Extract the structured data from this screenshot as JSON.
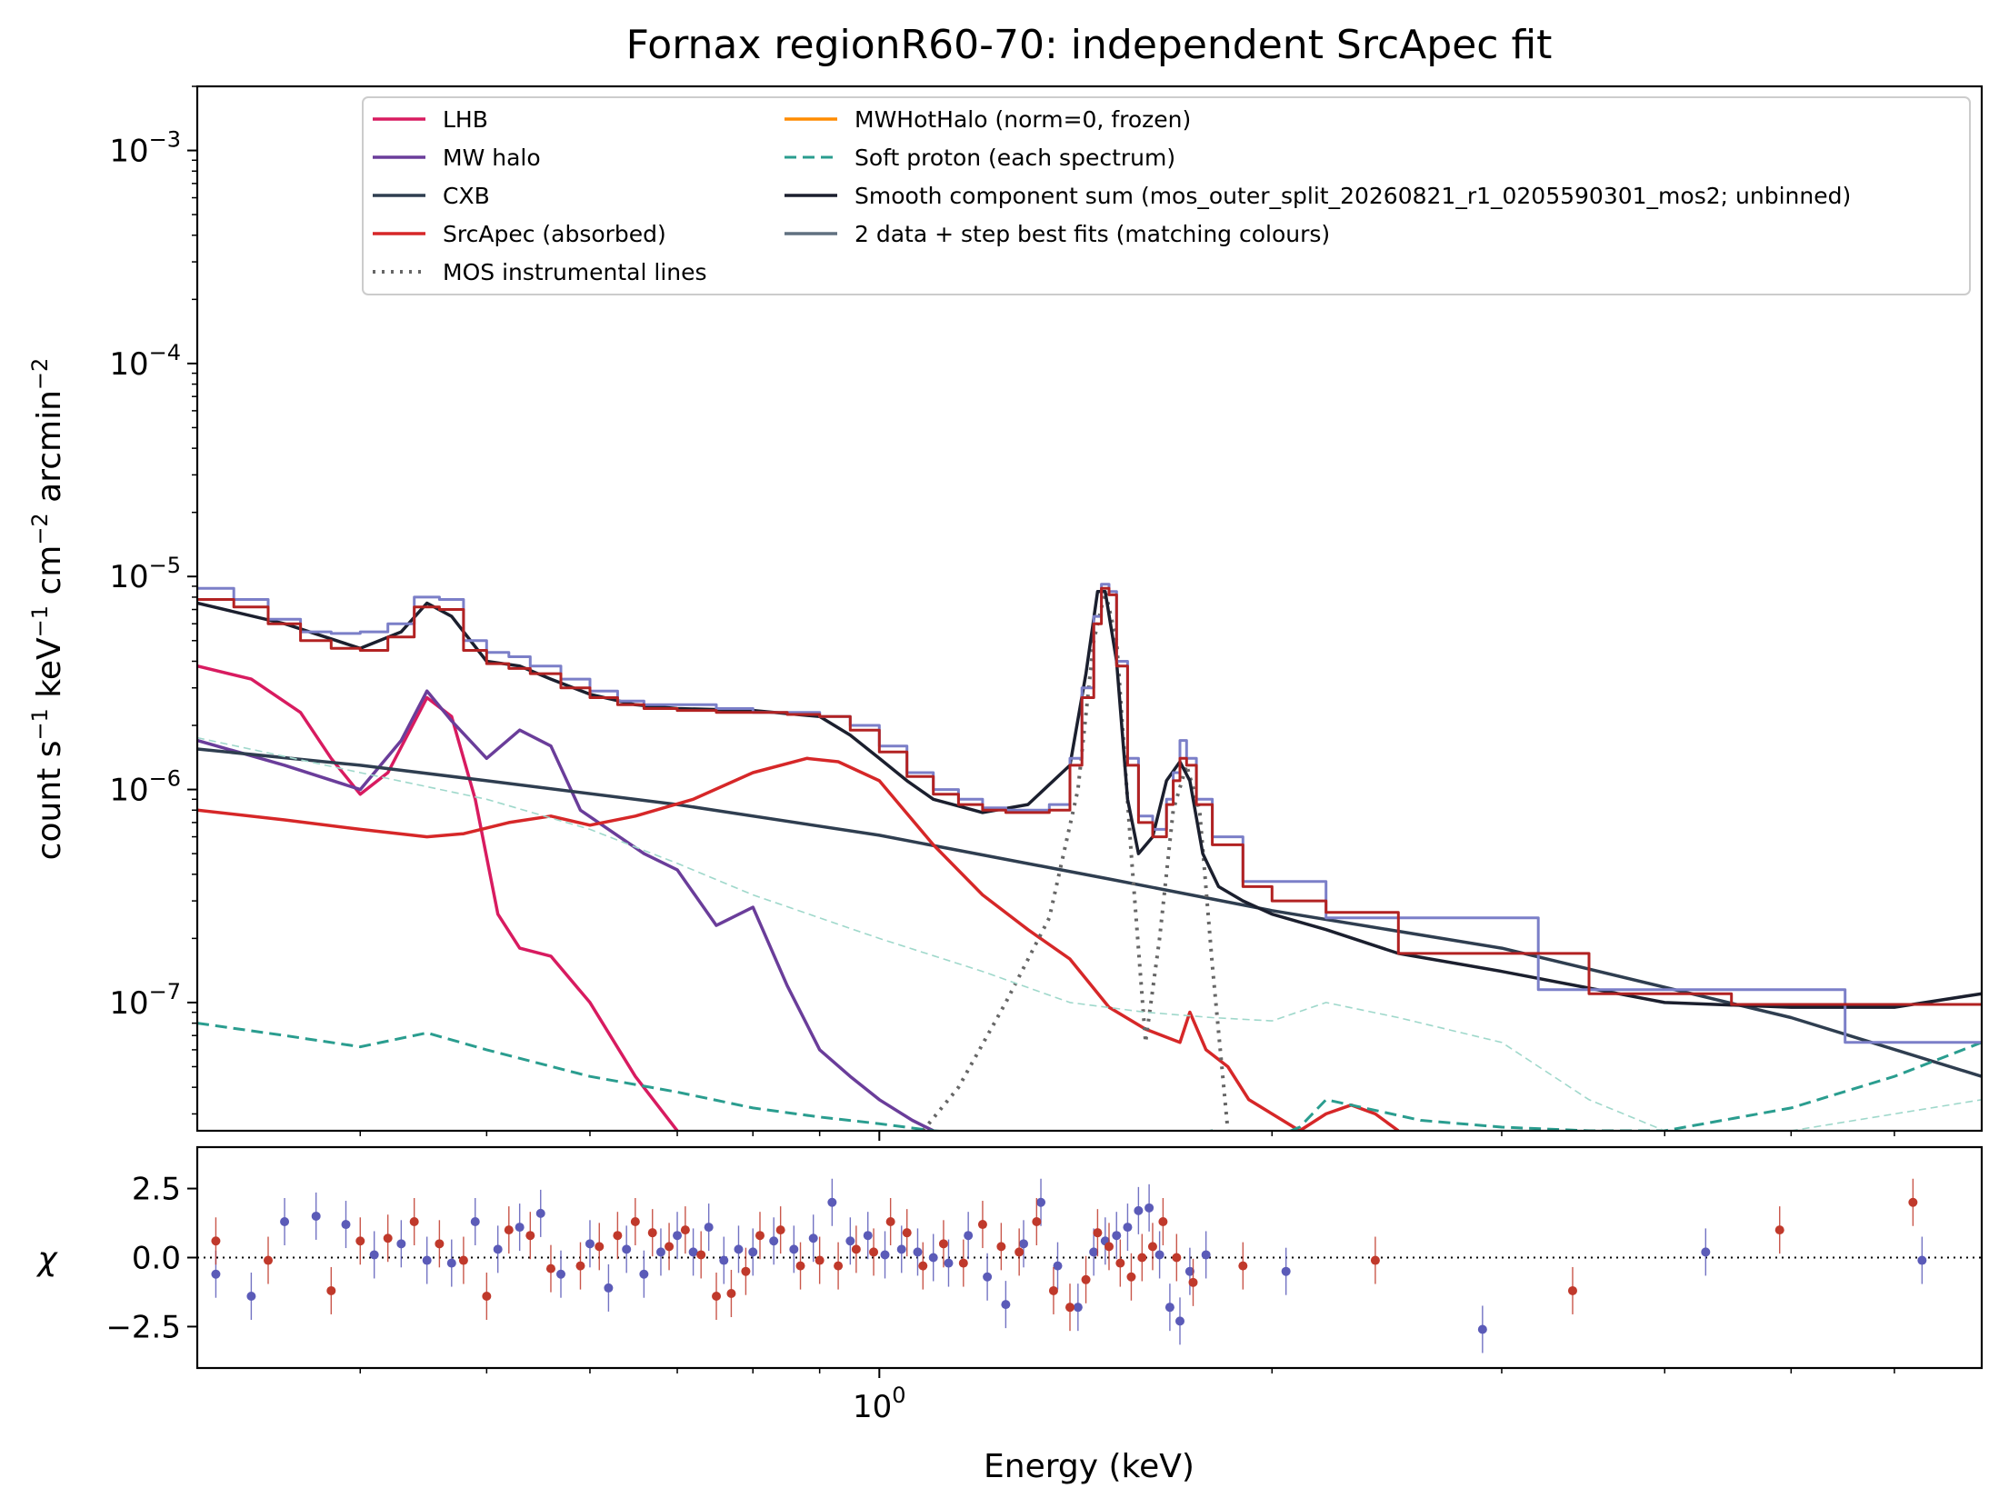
{
  "chart_data": {
    "type": "line",
    "title": "Fornax regionR60-70: independent SrcApec fit",
    "xlabel": "Energy (keV)",
    "x_scale": "log",
    "xlim": [
      0.3,
      7.0
    ],
    "x_tick_labels": [
      {
        "value": 1.0,
        "label": "10^0"
      }
    ],
    "x_minor_ticks": [
      0.4,
      0.5,
      0.6,
      0.7,
      0.8,
      0.9,
      2,
      3,
      4,
      5,
      6
    ],
    "grid": false,
    "legend_placement": "top",
    "main_panel": {
      "ylabel": "count s^-1 keV^-1 cm^-2 arcmin^-2",
      "y_scale": "log",
      "ylim": [
        2.5e-08,
        0.002
      ],
      "y_tick_labels": [
        {
          "value": 0.001,
          "label": "10^-3"
        },
        {
          "value": 0.0001,
          "label": "10^-4"
        },
        {
          "value": 1e-05,
          "label": "10^-5"
        },
        {
          "value": 1e-06,
          "label": "10^-6"
        },
        {
          "value": 1e-07,
          "label": "10^-7"
        }
      ],
      "legend": [
        {
          "label": "LHB",
          "color": "#d81b60",
          "style": "solid"
        },
        {
          "label": "MW halo",
          "color": "#6a3d9a",
          "style": "solid"
        },
        {
          "label": "CXB",
          "color": "#2f3e50",
          "style": "solid"
        },
        {
          "label": "SrcApec (absorbed)",
          "color": "#d62728",
          "style": "solid"
        },
        {
          "label": "MOS instrumental lines",
          "color": "#666666",
          "style": "dotted"
        },
        {
          "label": "MWHotHalo (norm=0, frozen)",
          "color": "#ff8c00",
          "style": "solid"
        },
        {
          "label": "Soft proton (each spectrum)",
          "color": "#2a9d8f",
          "style": "dashed"
        },
        {
          "label": "Smooth component sum (mos_outer_split_20260821_r1_0205590301_mos2; unbinned)",
          "color": "#1b1f2e",
          "style": "solid"
        },
        {
          "label": "2 data + step best fits (matching colours)",
          "color": "#607080",
          "style": "solid"
        }
      ],
      "series": [
        {
          "name": "LHB",
          "color": "#d81b60",
          "style": "solid",
          "x": [
            0.3,
            0.33,
            0.36,
            0.38,
            0.4,
            0.42,
            0.45,
            0.47,
            0.49,
            0.51,
            0.53,
            0.56,
            0.6,
            0.65,
            0.7
          ],
          "y": [
            3.8e-06,
            3.3e-06,
            2.3e-06,
            1.4e-06,
            9.5e-07,
            1.2e-06,
            2.7e-06,
            2.2e-06,
            9e-07,
            2.6e-07,
            1.8e-07,
            1.65e-07,
            1e-07,
            4.5e-08,
            2.5e-08
          ]
        },
        {
          "name": "MW halo",
          "color": "#6a3d9a",
          "style": "solid",
          "x": [
            0.3,
            0.35,
            0.4,
            0.43,
            0.45,
            0.47,
            0.5,
            0.53,
            0.56,
            0.59,
            0.62,
            0.66,
            0.7,
            0.75,
            0.8,
            0.85,
            0.9,
            0.95,
            1.0,
            1.06,
            1.1
          ],
          "y": [
            1.7e-06,
            1.3e-06,
            1e-06,
            1.7e-06,
            2.9e-06,
            2.1e-06,
            1.4e-06,
            1.9e-06,
            1.6e-06,
            8e-07,
            6.5e-07,
            5e-07,
            4.2e-07,
            2.3e-07,
            2.8e-07,
            1.2e-07,
            6e-08,
            4.5e-08,
            3.5e-08,
            2.8e-08,
            2.5e-08
          ]
        },
        {
          "name": "CXB",
          "color": "#2f3e50",
          "style": "solid",
          "x": [
            0.3,
            0.4,
            0.5,
            0.7,
            1.0,
            1.5,
            2.0,
            3.0,
            5.0,
            7.0
          ],
          "y": [
            1.55e-06,
            1.3e-06,
            1.1e-06,
            8.5e-07,
            6.1e-07,
            3.8e-07,
            2.7e-07,
            1.8e-07,
            8.5e-08,
            4.5e-08
          ]
        },
        {
          "name": "SrcApec (absorbed)",
          "color": "#d62728",
          "style": "solid",
          "x": [
            0.3,
            0.35,
            0.4,
            0.45,
            0.48,
            0.52,
            0.56,
            0.6,
            0.65,
            0.72,
            0.8,
            0.88,
            0.93,
            1.0,
            1.1,
            1.2,
            1.3,
            1.4,
            1.5,
            1.6,
            1.7,
            1.73,
            1.78,
            1.85,
            1.92,
            2.0,
            2.1,
            2.2,
            2.3,
            2.4,
            2.5
          ],
          "y": [
            8e-07,
            7.2e-07,
            6.5e-07,
            6e-07,
            6.2e-07,
            7e-07,
            7.5e-07,
            6.8e-07,
            7.5e-07,
            9e-07,
            1.2e-06,
            1.4e-06,
            1.35e-06,
            1.1e-06,
            5.5e-07,
            3.2e-07,
            2.2e-07,
            1.6e-07,
            9.5e-08,
            7.5e-08,
            6.5e-08,
            9e-08,
            6e-08,
            5e-08,
            3.5e-08,
            3e-08,
            2.5e-08,
            3e-08,
            3.3e-08,
            3e-08,
            2.5e-08
          ]
        },
        {
          "name": "MOS instrumental lines",
          "color": "#666666",
          "style": "dotted",
          "x": [
            1.08,
            1.15,
            1.25,
            1.35,
            1.42,
            1.46,
            1.49,
            1.52,
            1.56,
            1.6,
            1.64,
            1.68,
            1.72,
            1.76,
            1.8,
            1.85
          ],
          "y": [
            2.5e-08,
            4e-08,
            1e-07,
            2.5e-07,
            1e-06,
            5e-06,
            8.5e-06,
            5e-06,
            5e-07,
            6.5e-08,
            2e-07,
            8e-07,
            1.3e-06,
            8e-07,
            1.5e-07,
            2.5e-08
          ]
        },
        {
          "name": "Soft proton (each spectrum)",
          "color": "#2a9d8f",
          "style": "dashed",
          "x": [
            0.3,
            0.35,
            0.4,
            0.45,
            0.5,
            0.6,
            0.7,
            0.8,
            0.9,
            1.0,
            1.1,
            1.2,
            1.4,
            1.6,
            1.8,
            2.0,
            2.1,
            2.2,
            2.3,
            2.6,
            3.0,
            3.5,
            4.0,
            5.0,
            6.0,
            7.0
          ],
          "y": [
            8e-08,
            7e-08,
            6.2e-08,
            7.2e-08,
            6e-08,
            4.5e-08,
            3.8e-08,
            3.2e-08,
            2.9e-08,
            2.7e-08,
            2.5e-08,
            2.4e-08,
            2.3e-08,
            2.2e-08,
            2.5e-08,
            2.3e-08,
            2.6e-08,
            3.5e-08,
            3.3e-08,
            2.8e-08,
            2.6e-08,
            2.5e-08,
            2.5e-08,
            3.2e-08,
            4.5e-08,
            6.5e-08
          ]
        },
        {
          "name": "Soft proton (second spectrum)",
          "color": "#9fd8cb",
          "style": "dashed-thin",
          "x": [
            0.3,
            0.4,
            0.5,
            0.6,
            0.7,
            0.8,
            1.0,
            1.2,
            1.4,
            1.6,
            1.8,
            2.0,
            2.2,
            2.5,
            3.0,
            3.5,
            4.0,
            5.0,
            7.0
          ],
          "y": [
            1.75e-06,
            1.2e-06,
            9e-07,
            6.5e-07,
            4.5e-07,
            3.2e-07,
            2e-07,
            1.4e-07,
            1e-07,
            9e-08,
            8.5e-08,
            8.2e-08,
            1e-07,
            8.5e-08,
            6.5e-08,
            3.5e-08,
            2.5e-08,
            2.5e-08,
            3.5e-08
          ]
        },
        {
          "name": "Smooth component sum (mos_outer_split_20260821_r1_0205590301_mos2; unbinned)",
          "color": "#1b1f2e",
          "style": "solid",
          "x": [
            0.3,
            0.35,
            0.4,
            0.43,
            0.45,
            0.47,
            0.5,
            0.53,
            0.56,
            0.6,
            0.65,
            0.7,
            0.8,
            0.9,
            0.95,
            1.0,
            1.05,
            1.1,
            1.2,
            1.3,
            1.4,
            1.44,
            1.47,
            1.49,
            1.52,
            1.55,
            1.58,
            1.62,
            1.66,
            1.7,
            1.73,
            1.77,
            1.82,
            1.9,
            2.0,
            2.2,
            2.5,
            3.0,
            4.0,
            5.0,
            6.0,
            7.0
          ],
          "y": [
            7.5e-06,
            6e-06,
            4.6e-06,
            5.5e-06,
            7.5e-06,
            6.5e-06,
            4e-06,
            3.8e-06,
            3.3e-06,
            2.8e-06,
            2.5e-06,
            2.4e-06,
            2.35e-06,
            2.2e-06,
            1.8e-06,
            1.4e-06,
            1.1e-06,
            9e-07,
            7.8e-07,
            8.5e-07,
            1.3e-06,
            3.5e-06,
            8.5e-06,
            8.5e-06,
            4e-06,
            9e-07,
            5e-07,
            6e-07,
            1.1e-06,
            1.35e-06,
            1.1e-06,
            5e-07,
            3.5e-07,
            3e-07,
            2.6e-07,
            2.2e-07,
            1.7e-07,
            1.4e-07,
            1e-07,
            9.5e-08,
            9.5e-08,
            1.1e-07
          ]
        },
        {
          "name": "2 data + step best fits (matching colours)",
          "color": "#7b7fc8",
          "style": "step",
          "x": [
            0.3,
            0.32,
            0.34,
            0.36,
            0.38,
            0.4,
            0.42,
            0.44,
            0.46,
            0.48,
            0.5,
            0.52,
            0.54,
            0.57,
            0.6,
            0.63,
            0.66,
            0.7,
            0.75,
            0.8,
            0.85,
            0.9,
            0.95,
            1.0,
            1.05,
            1.1,
            1.15,
            1.2,
            1.25,
            1.3,
            1.35,
            1.4,
            1.43,
            1.46,
            1.48,
            1.5,
            1.52,
            1.55,
            1.58,
            1.62,
            1.66,
            1.68,
            1.7,
            1.72,
            1.75,
            1.8,
            1.9,
            2.0,
            2.2,
            2.6,
            3.2,
            4.2,
            5.5,
            7.0
          ],
          "y": [
            8.8e-06,
            7.8e-06,
            6.3e-06,
            5.5e-06,
            5.4e-06,
            5.5e-06,
            6e-06,
            8e-06,
            7.8e-06,
            5e-06,
            4.4e-06,
            4.2e-06,
            3.8e-06,
            3.3e-06,
            2.9e-06,
            2.6e-06,
            2.5e-06,
            2.5e-06,
            2.4e-06,
            2.3e-06,
            2.3e-06,
            2.2e-06,
            2e-06,
            1.6e-06,
            1.2e-06,
            1e-06,
            9e-07,
            8.2e-07,
            8e-07,
            8e-07,
            8.5e-07,
            1.4e-06,
            3e-06,
            6.5e-06,
            9.2e-06,
            8.5e-06,
            4e-06,
            1.4e-06,
            7.5e-07,
            6.5e-07,
            9e-07,
            1.2e-06,
            1.7e-06,
            1.4e-06,
            9e-07,
            6e-07,
            3.7e-07,
            3.7e-07,
            2.5e-07,
            2.5e-07,
            1.15e-07,
            1.15e-07,
            6.5e-08,
            6.5e-08
          ]
        },
        {
          "name": "",
          "color": "#b22222",
          "style": "step",
          "x": [
            0.3,
            0.32,
            0.34,
            0.36,
            0.38,
            0.4,
            0.42,
            0.44,
            0.46,
            0.48,
            0.5,
            0.52,
            0.54,
            0.57,
            0.6,
            0.63,
            0.66,
            0.7,
            0.75,
            0.8,
            0.85,
            0.9,
            0.95,
            1.0,
            1.05,
            1.1,
            1.15,
            1.2,
            1.25,
            1.3,
            1.35,
            1.4,
            1.43,
            1.46,
            1.48,
            1.5,
            1.52,
            1.55,
            1.58,
            1.62,
            1.66,
            1.68,
            1.7,
            1.72,
            1.75,
            1.8,
            1.9,
            2.0,
            2.2,
            2.5,
            2.7,
            3.5,
            4.5,
            7.0
          ],
          "y": [
            7.8e-06,
            7.2e-06,
            6e-06,
            5e-06,
            4.6e-06,
            4.5e-06,
            5.2e-06,
            7.2e-06,
            7e-06,
            4.5e-06,
            3.9e-06,
            3.7e-06,
            3.5e-06,
            3e-06,
            2.7e-06,
            2.5e-06,
            2.4e-06,
            2.35e-06,
            2.3e-06,
            2.3e-06,
            2.25e-06,
            2.2e-06,
            1.9e-06,
            1.5e-06,
            1.15e-06,
            9.5e-07,
            8.5e-07,
            8e-07,
            7.8e-07,
            7.8e-07,
            8e-07,
            1.3e-06,
            2.7e-06,
            6e-06,
            8.8e-06,
            8.2e-06,
            3.8e-06,
            1.3e-06,
            7e-07,
            6e-07,
            8.5e-07,
            1.1e-06,
            1.4e-06,
            1.3e-06,
            8.5e-07,
            5.5e-07,
            3.5e-07,
            3e-07,
            2.65e-07,
            1.7e-07,
            1.7e-07,
            1.1e-07,
            9.8e-08,
            9.8e-08
          ]
        }
      ]
    },
    "residual_panel": {
      "ylabel": "χ",
      "ylim": [
        -4.0,
        4.0
      ],
      "y_tick_labels": [
        {
          "value": 2.5,
          "label": "2.5"
        },
        {
          "value": 0.0,
          "label": "0.0"
        },
        {
          "value": -2.5,
          "label": "−2.5"
        }
      ],
      "zero_line": true,
      "series": [
        {
          "name": "",
          "color": "#5b5bb8",
          "x": [
            0.31,
            0.33,
            0.35,
            0.37,
            0.39,
            0.41,
            0.43,
            0.45,
            0.47,
            0.49,
            0.51,
            0.53,
            0.55,
            0.57,
            0.6,
            0.62,
            0.64,
            0.66,
            0.68,
            0.7,
            0.72,
            0.74,
            0.76,
            0.78,
            0.8,
            0.83,
            0.86,
            0.89,
            0.92,
            0.95,
            0.98,
            1.01,
            1.04,
            1.07,
            1.1,
            1.13,
            1.17,
            1.21,
            1.25,
            1.29,
            1.33,
            1.37,
            1.42,
            1.46,
            1.49,
            1.52,
            1.55,
            1.58,
            1.61,
            1.64,
            1.67,
            1.7,
            1.73,
            1.78,
            2.05,
            2.9,
            4.3,
            6.3
          ],
          "y": [
            -0.6,
            -1.4,
            1.3,
            1.5,
            1.2,
            0.1,
            0.5,
            -0.1,
            -0.2,
            1.3,
            0.3,
            1.1,
            1.6,
            -0.6,
            0.5,
            -1.1,
            0.3,
            -0.6,
            0.2,
            0.8,
            0.2,
            1.1,
            -0.1,
            0.3,
            0.2,
            0.6,
            0.3,
            0.7,
            2.0,
            0.6,
            0.8,
            0.1,
            0.3,
            0.2,
            0.0,
            -0.2,
            0.8,
            -0.7,
            -1.7,
            0.5,
            2.0,
            -0.3,
            -1.8,
            0.2,
            0.6,
            0.8,
            1.1,
            1.7,
            1.8,
            0.1,
            -1.8,
            -2.3,
            -0.5,
            0.1,
            -0.5,
            -2.6,
            0.2,
            -0.1
          ]
        },
        {
          "name": "",
          "color": "#c0392b",
          "x": [
            0.31,
            0.34,
            0.38,
            0.4,
            0.42,
            0.44,
            0.46,
            0.48,
            0.5,
            0.52,
            0.54,
            0.56,
            0.59,
            0.61,
            0.63,
            0.65,
            0.67,
            0.69,
            0.71,
            0.73,
            0.75,
            0.77,
            0.79,
            0.81,
            0.84,
            0.87,
            0.9,
            0.93,
            0.96,
            0.99,
            1.02,
            1.05,
            1.08,
            1.12,
            1.16,
            1.2,
            1.24,
            1.28,
            1.32,
            1.36,
            1.4,
            1.44,
            1.47,
            1.5,
            1.53,
            1.56,
            1.59,
            1.62,
            1.65,
            1.69,
            1.74,
            1.9,
            2.4,
            3.4,
            4.9,
            6.2
          ],
          "y": [
            0.6,
            -0.1,
            -1.2,
            0.6,
            0.7,
            1.3,
            0.5,
            -0.1,
            -1.4,
            1.0,
            0.8,
            -0.4,
            -0.3,
            0.4,
            0.8,
            1.3,
            0.9,
            0.4,
            1.0,
            0.1,
            -1.4,
            -1.3,
            -0.5,
            0.8,
            1.0,
            -0.3,
            -0.1,
            -0.3,
            0.3,
            0.2,
            1.3,
            0.9,
            -0.3,
            0.5,
            -0.2,
            1.2,
            0.4,
            0.2,
            1.3,
            -1.2,
            -1.8,
            -0.8,
            0.9,
            0.4,
            -0.2,
            -0.7,
            0.0,
            0.4,
            1.3,
            0.0,
            -0.9,
            -0.3,
            -0.1,
            -1.2,
            1.0,
            2.0
          ]
        }
      ]
    }
  }
}
